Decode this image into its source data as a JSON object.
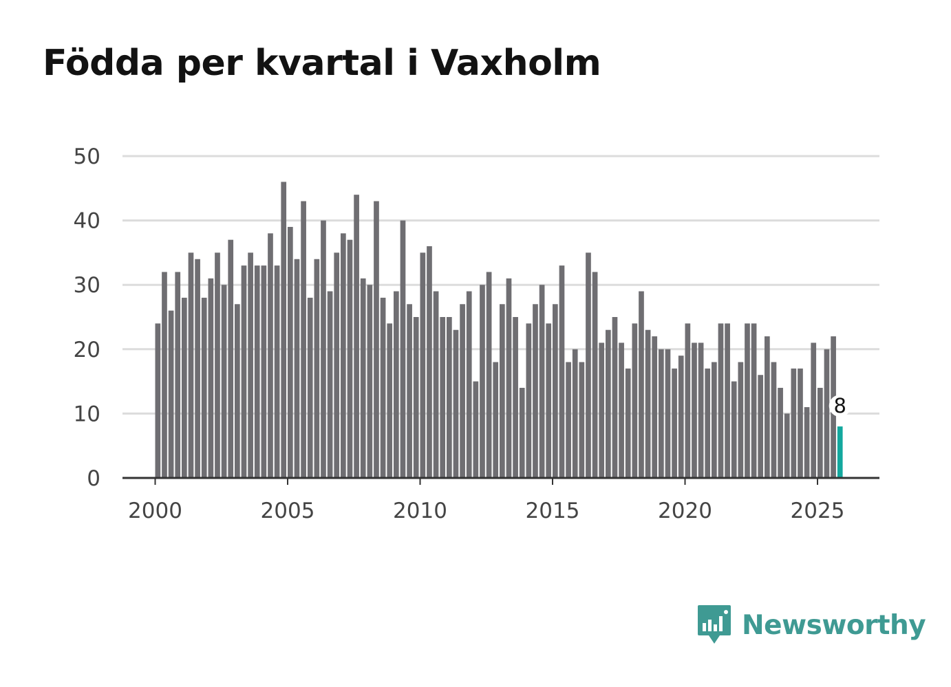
{
  "chart_data": {
    "type": "bar",
    "title": "Födda per kvartal i Vaxholm",
    "xlabel": "",
    "ylabel": "",
    "ylim": [
      0,
      50
    ],
    "yticks": [
      0,
      10,
      20,
      30,
      40,
      50
    ],
    "xticks": [
      2000,
      2005,
      2010,
      2015,
      2020,
      2025
    ],
    "start": "2000 Q1",
    "grid": true,
    "bar_color": "#6f6e72",
    "highlight_color": "#13a89e",
    "values": [
      24,
      32,
      26,
      32,
      28,
      35,
      34,
      28,
      31,
      35,
      30,
      37,
      27,
      33,
      35,
      33,
      33,
      38,
      33,
      46,
      39,
      34,
      43,
      28,
      34,
      40,
      29,
      35,
      38,
      37,
      44,
      31,
      30,
      43,
      28,
      24,
      29,
      40,
      27,
      25,
      35,
      36,
      29,
      25,
      25,
      23,
      27,
      29,
      15,
      30,
      32,
      18,
      27,
      31,
      25,
      14,
      24,
      27,
      30,
      24,
      27,
      33,
      18,
      20,
      18,
      35,
      32,
      21,
      23,
      25,
      21,
      17,
      24,
      29,
      23,
      22,
      20,
      20,
      17,
      19,
      24,
      21,
      21,
      17,
      18,
      24,
      24,
      15,
      18,
      24,
      24,
      16,
      22,
      18,
      14,
      10,
      17,
      17,
      11,
      21,
      14,
      20,
      22,
      8
    ],
    "highlight_index": 103,
    "annotation": "8"
  },
  "brand": {
    "name": "Newsworthy",
    "color": "#3f9a93"
  }
}
